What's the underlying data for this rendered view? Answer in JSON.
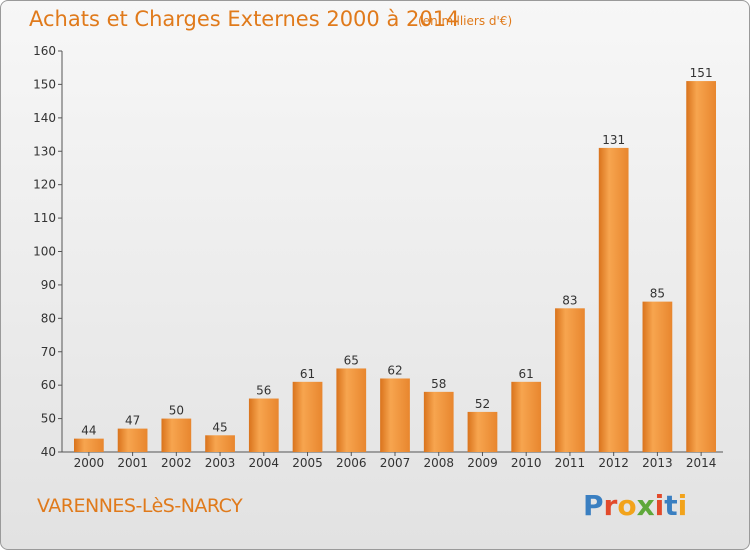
{
  "header": {
    "title": "Achats et Charges Externes 2000 à 2014",
    "unit": "(en milliers d'€)"
  },
  "footer": {
    "commune": "VARENNES-LèS-NARCY",
    "logo_text": "Proxiti",
    "logo_colors": [
      "#3a7fc1",
      "#e24a2b",
      "#f2a31b",
      "#5fa83a",
      "#e24a2b",
      "#3a7fc1",
      "#f2a31b"
    ]
  },
  "chart_data": {
    "type": "bar",
    "title": "Achats et Charges Externes 2000 à 2014",
    "categories": [
      "2000",
      "2001",
      "2002",
      "2003",
      "2004",
      "2005",
      "2006",
      "2007",
      "2008",
      "2009",
      "2010",
      "2011",
      "2012",
      "2013",
      "2014"
    ],
    "values": [
      44,
      47,
      50,
      45,
      56,
      61,
      65,
      62,
      58,
      52,
      61,
      83,
      131,
      85,
      151
    ],
    "ylim": [
      40,
      160
    ],
    "yticks": [
      40,
      50,
      60,
      70,
      80,
      90,
      100,
      110,
      120,
      130,
      140,
      150,
      160
    ],
    "grid": false,
    "colors": {
      "bar_light": "#f7a54f",
      "bar_dark": "#d9731c",
      "axis": "#555555"
    }
  }
}
